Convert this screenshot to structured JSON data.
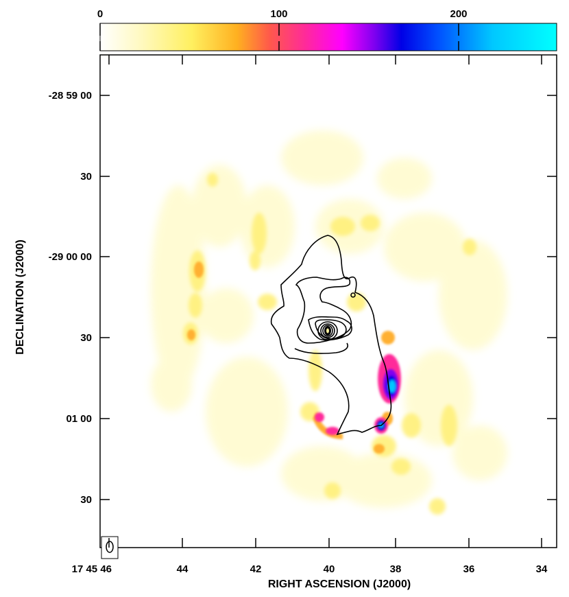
{
  "chart_data": {
    "type": "heatmap",
    "title": "",
    "xlabel": "RIGHT ASCENSION (J2000)",
    "ylabel": "DECLINATION (J2000)",
    "x_ticks": [
      "17 45 46",
      "44",
      "42",
      "40",
      "38",
      "36",
      "34"
    ],
    "y_ticks": [
      "-28 59 00",
      "30",
      "-29 00 00",
      "30",
      "01 00",
      "30"
    ],
    "colorbar": {
      "range": [
        0,
        255
      ],
      "ticks": [
        "0",
        "100",
        "200"
      ],
      "colors": [
        "#ffffff",
        "#fff9c0",
        "#fff060",
        "#ffb020",
        "#ff5a4a",
        "#ff2a9a",
        "#ff00ff",
        "#8000f0",
        "#0000e6",
        "#0050ff",
        "#00c8ff",
        "#00ffff"
      ]
    },
    "grid": false,
    "legend": "none",
    "contours": "black",
    "beam": "bottom-left",
    "emission_peaks": [
      {
        "ra": "17 45 38.2",
        "dec": "-29 00 47",
        "level": 240
      },
      {
        "ra": "17 45 38.5",
        "dec": "-29 01 03",
        "level": 210
      },
      {
        "ra": "17 45 40.3",
        "dec": "-29 01 00",
        "level": 120
      },
      {
        "ra": "17 45 38.7",
        "dec": "-29 01 12",
        "level": 60
      },
      {
        "ra": "17 45 43.7",
        "dec": "-29 00 05",
        "level": 55
      },
      {
        "ra": "17 45 43.8",
        "dec": "-29 00 30",
        "level": 50
      },
      {
        "ra": "17 45 38.5",
        "dec": "-29 00 30",
        "level": 55
      },
      {
        "ra": "17 45 42.1",
        "dec": "-28 59 45",
        "level": 40
      }
    ],
    "contour_peak": {
      "ra": "17 45 39.9",
      "dec": "-29 00 28"
    }
  }
}
